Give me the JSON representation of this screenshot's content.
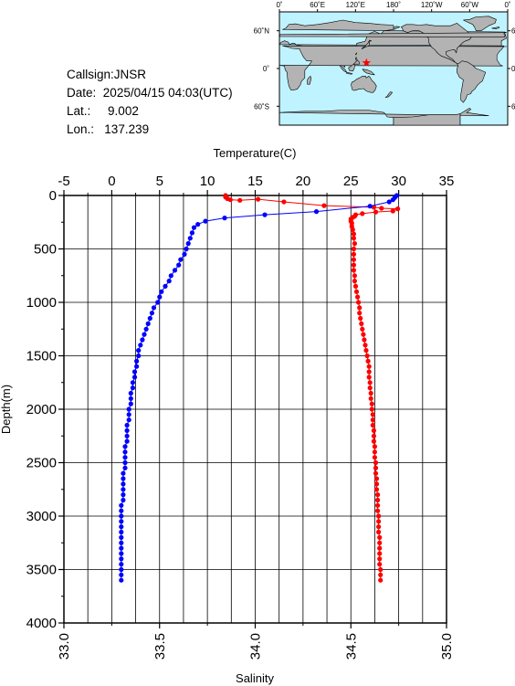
{
  "station": {
    "callsign_label": "Callsign:",
    "callsign": "JNSR",
    "date_label": "Date:",
    "date": "2025/04/15 04:03(UTC)",
    "lat_label": "Lat.:",
    "lat": "9.002",
    "lon_label": "Lon.:",
    "lon": "137.239"
  },
  "map": {
    "ocean_color": "#bff3ff",
    "land_color": "#b3b3b3",
    "marker_color": "#ff0000",
    "marker_icon": "star-icon",
    "marker_lon": 137.239,
    "marker_lat": 9.002,
    "top_lon_labels": [
      "0˚",
      "60˚E",
      "120˚E",
      "180˚",
      "120˚W",
      "60˚W",
      "0˚"
    ],
    "right_lat_labels": [
      "60˚N",
      "0˚",
      "60˚S"
    ],
    "left_lat_labels": [
      "60˚N",
      "0˚",
      "60˚S"
    ]
  },
  "chart_data": {
    "type": "line",
    "ylabel": "Depth(m)",
    "ylim": [
      0,
      4000
    ],
    "y_ticks": [
      0,
      500,
      1000,
      1500,
      2000,
      2500,
      3000,
      3500,
      4000
    ],
    "top_axis": {
      "label": "Temperature(C)",
      "range": [
        -5,
        35
      ],
      "ticks": [
        -5,
        0,
        5,
        10,
        15,
        20,
        25,
        30,
        35
      ]
    },
    "bottom_axis": {
      "label": "Salinity",
      "range": [
        33.0,
        35.0
      ],
      "ticks": [
        "33.0",
        "33.5",
        "34.0",
        "34.5",
        "35.0"
      ]
    },
    "grid": true,
    "series": [
      {
        "axis": "top",
        "color": "#ff0000",
        "points": [
          [
            11.9,
            0
          ],
          [
            11.9,
            15
          ],
          [
            12.1,
            30
          ],
          [
            12.4,
            40
          ],
          [
            13.4,
            45
          ],
          [
            15.3,
            35
          ],
          [
            18.0,
            60
          ],
          [
            22.2,
            95
          ],
          [
            27.4,
            110
          ],
          [
            28.2,
            120
          ],
          [
            29.9,
            125
          ],
          [
            29.4,
            145
          ],
          [
            27.6,
            155
          ],
          [
            26.2,
            170
          ],
          [
            25.5,
            180
          ],
          [
            25.4,
            195
          ],
          [
            25.2,
            205
          ],
          [
            25.0,
            220
          ],
          [
            25.0,
            240
          ],
          [
            25.1,
            260
          ],
          [
            25.1,
            290
          ],
          [
            25.2,
            320
          ],
          [
            25.3,
            360
          ],
          [
            25.3,
            400
          ],
          [
            25.4,
            450
          ],
          [
            25.3,
            500
          ],
          [
            25.3,
            550
          ],
          [
            25.3,
            600
          ],
          [
            25.3,
            650
          ],
          [
            25.3,
            700
          ],
          [
            25.4,
            750
          ],
          [
            25.4,
            800
          ],
          [
            25.5,
            850
          ],
          [
            25.6,
            900
          ],
          [
            25.7,
            950
          ],
          [
            25.8,
            1000
          ],
          [
            25.9,
            1050
          ],
          [
            25.9,
            1100
          ],
          [
            26.0,
            1150
          ],
          [
            26.1,
            1200
          ],
          [
            26.2,
            1250
          ],
          [
            26.3,
            1300
          ],
          [
            26.4,
            1350
          ],
          [
            26.5,
            1400
          ],
          [
            26.6,
            1450
          ],
          [
            26.7,
            1500
          ],
          [
            26.8,
            1550
          ],
          [
            26.9,
            1600
          ],
          [
            26.9,
            1650
          ],
          [
            26.9,
            1700
          ],
          [
            27.0,
            1750
          ],
          [
            27.0,
            1800
          ],
          [
            27.1,
            1850
          ],
          [
            27.1,
            1900
          ],
          [
            27.2,
            1950
          ],
          [
            27.2,
            2000
          ],
          [
            27.3,
            2050
          ],
          [
            27.3,
            2100
          ],
          [
            27.3,
            2150
          ],
          [
            27.4,
            2200
          ],
          [
            27.4,
            2250
          ],
          [
            27.4,
            2300
          ],
          [
            27.5,
            2350
          ],
          [
            27.5,
            2400
          ],
          [
            27.5,
            2450
          ],
          [
            27.6,
            2500
          ],
          [
            27.6,
            2550
          ],
          [
            27.6,
            2600
          ],
          [
            27.7,
            2650
          ],
          [
            27.7,
            2700
          ],
          [
            27.7,
            2750
          ],
          [
            27.8,
            2800
          ],
          [
            27.8,
            2850
          ],
          [
            27.8,
            2900
          ],
          [
            27.8,
            2950
          ],
          [
            27.9,
            3000
          ],
          [
            27.9,
            3050
          ],
          [
            27.9,
            3100
          ],
          [
            27.9,
            3150
          ],
          [
            28.0,
            3200
          ],
          [
            28.0,
            3250
          ],
          [
            28.0,
            3300
          ],
          [
            28.0,
            3350
          ],
          [
            28.0,
            3400
          ],
          [
            28.0,
            3450
          ],
          [
            28.1,
            3500
          ],
          [
            28.1,
            3550
          ],
          [
            28.1,
            3600
          ]
        ]
      },
      {
        "axis": "bottom",
        "color": "#0000ff",
        "points": [
          [
            34.74,
            0
          ],
          [
            34.73,
            20
          ],
          [
            34.72,
            40
          ],
          [
            34.7,
            60
          ],
          [
            34.6,
            100
          ],
          [
            34.32,
            150
          ],
          [
            34.05,
            180
          ],
          [
            33.84,
            210
          ],
          [
            33.74,
            240
          ],
          [
            33.7,
            270
          ],
          [
            33.68,
            300
          ],
          [
            33.67,
            350
          ],
          [
            33.66,
            400
          ],
          [
            33.65,
            450
          ],
          [
            33.64,
            500
          ],
          [
            33.63,
            550
          ],
          [
            33.61,
            600
          ],
          [
            33.6,
            650
          ],
          [
            33.58,
            700
          ],
          [
            33.56,
            750
          ],
          [
            33.55,
            800
          ],
          [
            33.53,
            850
          ],
          [
            33.51,
            900
          ],
          [
            33.5,
            950
          ],
          [
            33.49,
            1000
          ],
          [
            33.47,
            1050
          ],
          [
            33.46,
            1100
          ],
          [
            33.45,
            1150
          ],
          [
            33.44,
            1200
          ],
          [
            33.43,
            1250
          ],
          [
            33.42,
            1300
          ],
          [
            33.41,
            1350
          ],
          [
            33.4,
            1400
          ],
          [
            33.39,
            1450
          ],
          [
            33.39,
            1500
          ],
          [
            33.38,
            1550
          ],
          [
            33.38,
            1600
          ],
          [
            33.37,
            1650
          ],
          [
            33.37,
            1700
          ],
          [
            33.36,
            1750
          ],
          [
            33.36,
            1800
          ],
          [
            33.35,
            1850
          ],
          [
            33.35,
            1900
          ],
          [
            33.35,
            1950
          ],
          [
            33.34,
            2000
          ],
          [
            33.34,
            2050
          ],
          [
            33.34,
            2100
          ],
          [
            33.33,
            2150
          ],
          [
            33.33,
            2200
          ],
          [
            33.33,
            2250
          ],
          [
            33.33,
            2300
          ],
          [
            33.32,
            2350
          ],
          [
            33.32,
            2400
          ],
          [
            33.32,
            2450
          ],
          [
            33.32,
            2500
          ],
          [
            33.32,
            2550
          ],
          [
            33.31,
            2600
          ],
          [
            33.31,
            2650
          ],
          [
            33.31,
            2700
          ],
          [
            33.31,
            2750
          ],
          [
            33.31,
            2800
          ],
          [
            33.31,
            2850
          ],
          [
            33.3,
            2900
          ],
          [
            33.3,
            2950
          ],
          [
            33.3,
            3000
          ],
          [
            33.3,
            3050
          ],
          [
            33.3,
            3100
          ],
          [
            33.3,
            3150
          ],
          [
            33.3,
            3200
          ],
          [
            33.3,
            3250
          ],
          [
            33.3,
            3300
          ],
          [
            33.3,
            3350
          ],
          [
            33.3,
            3400
          ],
          [
            33.3,
            3450
          ],
          [
            33.3,
            3500
          ],
          [
            33.3,
            3550
          ],
          [
            33.3,
            3600
          ]
        ]
      }
    ]
  }
}
